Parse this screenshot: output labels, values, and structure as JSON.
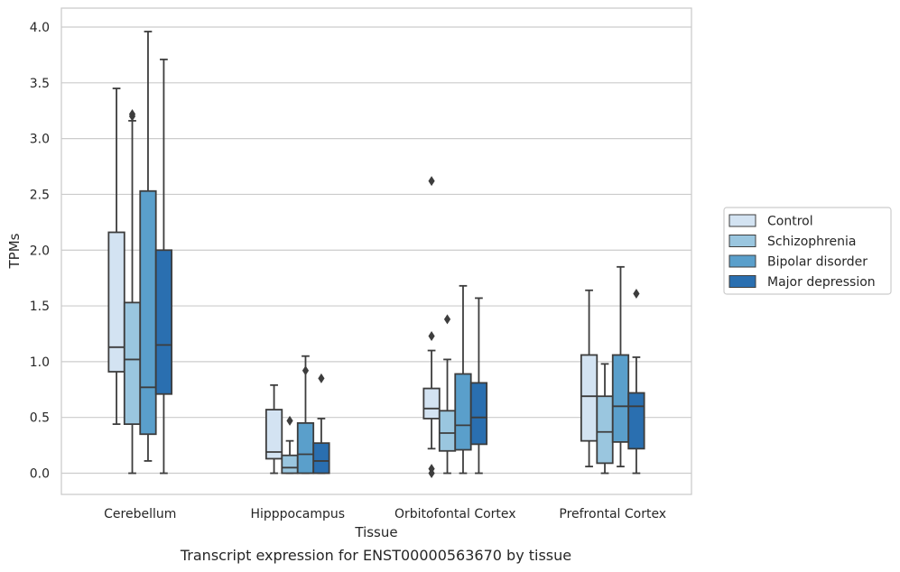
{
  "chart_data": {
    "type": "box",
    "caption": "Transcript expression for ENST00000563670 by tissue",
    "xlabel": "Tissue",
    "ylabel": "TPMs",
    "ylim": [
      -0.19,
      4.17
    ],
    "yticks": [
      "0.0",
      "0.5",
      "1.0",
      "1.5",
      "2.0",
      "2.5",
      "3.0",
      "3.5",
      "4.0"
    ],
    "grid": true,
    "legend_position": "right, outside plot",
    "categories": [
      "Cerebellum",
      "Hipppocampus",
      "Orbitofontal Cortex",
      "Prefrontal Cortex"
    ],
    "series": [
      {
        "name": "Control",
        "color": "#d3e3f2",
        "boxes": [
          {
            "whislo": 0.44,
            "q1": 0.91,
            "med": 1.13,
            "q3": 2.16,
            "whishi": 3.45,
            "fliers": []
          },
          {
            "whislo": 0.0,
            "q1": 0.13,
            "med": 0.19,
            "q3": 0.57,
            "whishi": 0.79,
            "fliers": []
          },
          {
            "whislo": 0.22,
            "q1": 0.49,
            "med": 0.58,
            "q3": 0.76,
            "whishi": 1.1,
            "fliers": [
              2.62,
              1.23,
              0.04,
              0.0
            ]
          },
          {
            "whislo": 0.06,
            "q1": 0.29,
            "med": 0.69,
            "q3": 1.06,
            "whishi": 1.64,
            "fliers": []
          }
        ]
      },
      {
        "name": "Schizophrenia",
        "color": "#9ac6df",
        "boxes": [
          {
            "whislo": 0.0,
            "q1": 0.44,
            "med": 1.02,
            "q3": 1.53,
            "whishi": 3.16,
            "fliers": [
              3.22,
              3.2
            ]
          },
          {
            "whislo": 0.0,
            "q1": 0.0,
            "med": 0.05,
            "q3": 0.16,
            "whishi": 0.29,
            "fliers": [
              0.47
            ]
          },
          {
            "whislo": 0.0,
            "q1": 0.2,
            "med": 0.36,
            "q3": 0.56,
            "whishi": 1.02,
            "fliers": [
              1.38
            ]
          },
          {
            "whislo": 0.0,
            "q1": 0.09,
            "med": 0.37,
            "q3": 0.69,
            "whishi": 0.98,
            "fliers": []
          }
        ]
      },
      {
        "name": "Bipolar disorder",
        "color": "#5a9fcb",
        "boxes": [
          {
            "whislo": 0.11,
            "q1": 0.35,
            "med": 0.77,
            "q3": 2.53,
            "whishi": 3.96,
            "fliers": []
          },
          {
            "whislo": 0.0,
            "q1": 0.0,
            "med": 0.17,
            "q3": 0.45,
            "whishi": 1.05,
            "fliers": [
              0.92
            ]
          },
          {
            "whislo": 0.0,
            "q1": 0.21,
            "med": 0.43,
            "q3": 0.89,
            "whishi": 1.68,
            "fliers": []
          },
          {
            "whislo": 0.06,
            "q1": 0.28,
            "med": 0.6,
            "q3": 1.06,
            "whishi": 1.85,
            "fliers": []
          }
        ]
      },
      {
        "name": "Major depression",
        "color": "#2a6fb0",
        "boxes": [
          {
            "whislo": 0.0,
            "q1": 0.71,
            "med": 1.15,
            "q3": 2.0,
            "whishi": 3.71,
            "fliers": []
          },
          {
            "whislo": 0.0,
            "q1": 0.0,
            "med": 0.11,
            "q3": 0.27,
            "whishi": 0.49,
            "fliers": [
              0.85
            ]
          },
          {
            "whislo": 0.0,
            "q1": 0.26,
            "med": 0.5,
            "q3": 0.81,
            "whishi": 1.57,
            "fliers": []
          },
          {
            "whislo": 0.0,
            "q1": 0.22,
            "med": 0.6,
            "q3": 0.72,
            "whishi": 1.04,
            "fliers": [
              1.61
            ]
          }
        ]
      }
    ]
  },
  "colors": {
    "edge": "#3d3d3d",
    "grid": "#cccccc",
    "frame": "#cccccc"
  }
}
